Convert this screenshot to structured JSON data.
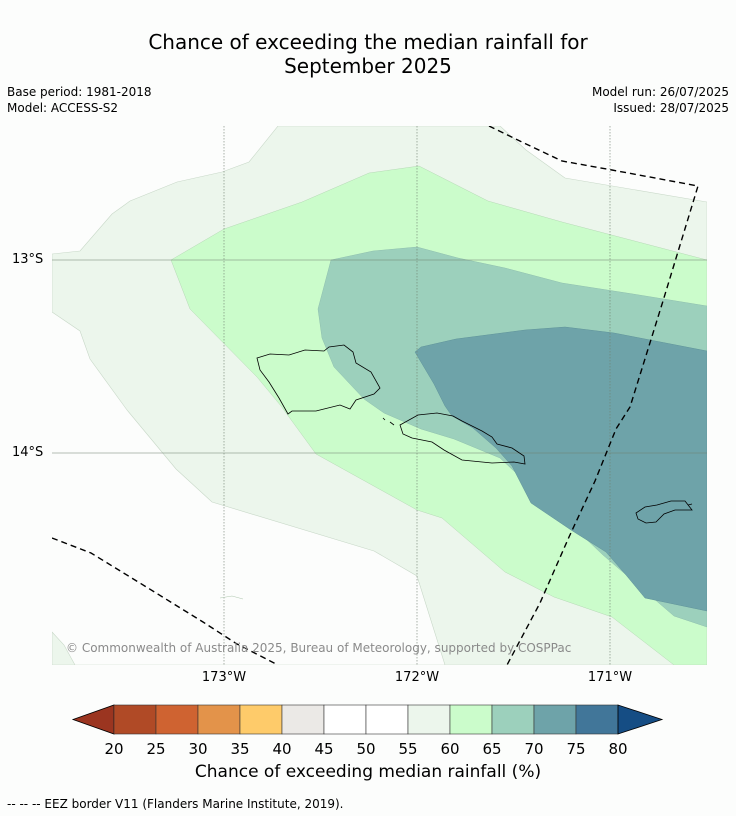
{
  "title_line1": "Chance of exceeding the median rainfall for",
  "title_line2": "September 2025",
  "meta": {
    "base_period": "Base period: 1981-2018",
    "model": "Model: ACCESS-S2",
    "model_run": "Model run: 26/07/2025",
    "issued": "Issued: 28/07/2025"
  },
  "axes": {
    "lat_labels": [
      "13°S",
      "14°S"
    ],
    "lon_labels": [
      "173°W",
      "172°W",
      "171°W"
    ]
  },
  "copyright": "© Commonwealth of Australia 2025, Bureau of Meteorology, supported by COSPPac",
  "colorbar": {
    "title": "Chance of exceeding median rainfall (%)",
    "ticks": [
      "20",
      "25",
      "30",
      "35",
      "40",
      "45",
      "50",
      "55",
      "60",
      "65",
      "70",
      "75",
      "80"
    ],
    "colors": [
      "#b04a26",
      "#cf6331",
      "#e3934a",
      "#fecb6a",
      "#ebe9e6",
      "#ffffff",
      "#ffffff",
      "#ecf6ec",
      "#cbfccb",
      "#9cd0bc",
      "#6ea3a9",
      "#417699"
    ],
    "under_color": "#9b3520",
    "over_color": "#154d84"
  },
  "legend": {
    "eez": "--  --  -- EEZ border V11 (Flanders Marine Institute, 2019)."
  },
  "map_colors": {
    "class_55_60": "#ecf6ec",
    "class_60_65": "#cbfccb",
    "class_65_70": "#9cd0bc",
    "class_70_75": "#6ea3a9"
  }
}
